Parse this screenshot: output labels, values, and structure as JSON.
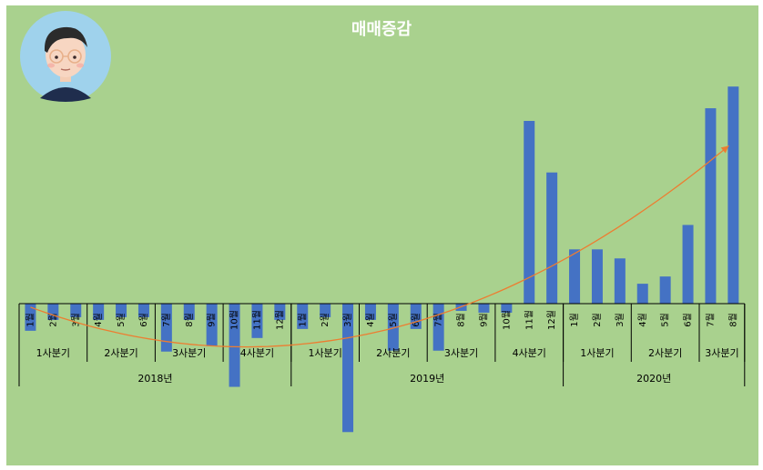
{
  "colors": {
    "background": "#a9d18e",
    "bar": "#4472c4",
    "trend": "#ed7d31",
    "axis_text": "#000000",
    "title": "#ffffff"
  },
  "icon": "avatar-icon",
  "chart_data": {
    "type": "bar",
    "title": "매매증감",
    "xlabel": "",
    "ylabel": "",
    "ylim": [
      -145,
      245
    ],
    "grid": false,
    "legend": "none",
    "trendline": "polynomial",
    "categories": [
      "1월",
      "2월",
      "3월",
      "4월",
      "5월",
      "6월",
      "7월",
      "8월",
      "9월",
      "10월",
      "11월",
      "12월",
      "1월",
      "2월",
      "3월",
      "4월",
      "5월",
      "6월",
      "7월",
      "8월",
      "9월",
      "10월",
      "11월",
      "12월",
      "1월",
      "2월",
      "3월",
      "4월",
      "5월",
      "6월",
      "7월",
      "8월"
    ],
    "values": [
      -30,
      -18,
      -15,
      -18,
      -15,
      -15,
      -53,
      -18,
      -47,
      -92,
      -38,
      -18,
      -28,
      -15,
      -142,
      -18,
      -52,
      -28,
      -52,
      -8,
      -10,
      -10,
      202,
      145,
      60,
      60,
      50,
      22,
      30,
      87,
      216,
      240
    ],
    "quarters": [
      {
        "label": "1사분기",
        "months": 3
      },
      {
        "label": "2사분기",
        "months": 3
      },
      {
        "label": "3사분기",
        "months": 3
      },
      {
        "label": "4사분기",
        "months": 3
      },
      {
        "label": "1사분기",
        "months": 3
      },
      {
        "label": "2사분기",
        "months": 3
      },
      {
        "label": "3사분기",
        "months": 3
      },
      {
        "label": "4사분기",
        "months": 3
      },
      {
        "label": "1사분기",
        "months": 3
      },
      {
        "label": "2사분기",
        "months": 3
      },
      {
        "label": "3사분기",
        "months": 2
      }
    ],
    "years": [
      {
        "label": "2018년",
        "months": 12
      },
      {
        "label": "2019년",
        "months": 12
      },
      {
        "label": "2020년",
        "months": 8
      }
    ]
  }
}
